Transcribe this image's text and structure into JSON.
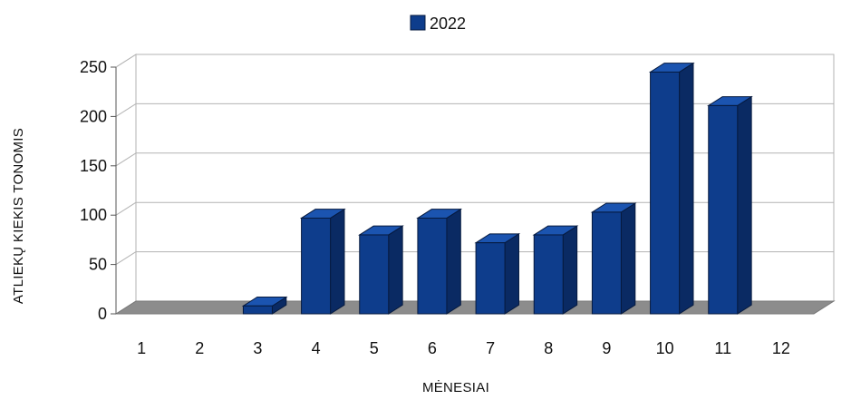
{
  "chart_data": {
    "type": "bar",
    "categories": [
      "1",
      "2",
      "3",
      "4",
      "5",
      "6",
      "7",
      "8",
      "9",
      "10",
      "11",
      "12"
    ],
    "series": [
      {
        "name": "2022",
        "values": [
          0,
          0,
          8,
          97,
          80,
          97,
          72,
          80,
          103,
          245,
          211,
          0
        ],
        "color": "#0e3d8c"
      }
    ],
    "title": "",
    "xlabel": "MĖNESIAI",
    "ylabel": "ATLIEKŲ KIEKIS TONOMIS",
    "ylim": [
      0,
      250
    ],
    "yticks": [
      0,
      50,
      100,
      150,
      200,
      250
    ],
    "grid": true,
    "legend_position": "top-center",
    "style": "3d"
  }
}
